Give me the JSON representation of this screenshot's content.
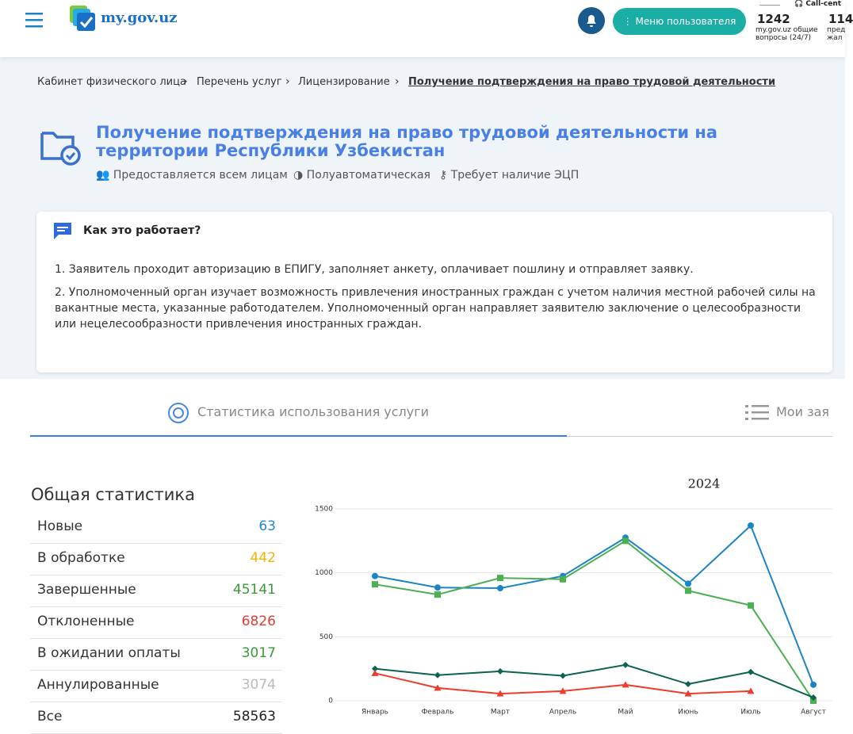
{
  "header": {
    "logo": "my.gov.uz",
    "menu_button": "Меню пользователя",
    "hotline": {
      "number": "1242",
      "caption": "my.gov.uz общие вопросы (24/7)"
    },
    "call_center": {
      "label": "Call-cent",
      "number": "114",
      "caption": "пред жал"
    }
  },
  "breadcrumbs": [
    "Кабинет физического лица",
    "Перечень услуг",
    "Лицензирование",
    "Получение подтверждения на право трудовой деятельности"
  ],
  "service": {
    "title": "Получение подтверждения на право трудовой деятельности на территории Республики Узбекистан",
    "tags": [
      "Предоставляется всем лицам",
      "Полуавтоматическая",
      "Требует наличие ЭЦП"
    ]
  },
  "how_it_works": {
    "title": "Как это работает?",
    "steps": [
      "1. Заявитель проходит авторизацию в ЕПИГУ, заполняет анкету, оплачивает пошлину и отправляет заявку.",
      "2. Уполномоченный орган изучает возможность привлечения иностранных граждан с учетом наличия местной рабочей силы на вакантные места, указанные работодателем. Уполномоченный орган направляет заявителю заключение о целесообразности или нецелесообразности привлечения иностранных граждан."
    ]
  },
  "tabs": [
    "Статистика использования услуги",
    "Мои зая"
  ],
  "statistics": {
    "title": "Общая статистика",
    "rows": [
      {
        "label": "Новые",
        "value": 63
      },
      {
        "label": "В обработке",
        "value": 442
      },
      {
        "label": "Завершенные",
        "value": 45141
      },
      {
        "label": "Отклоненные",
        "value": 6826
      },
      {
        "label": "В ожидании оплаты",
        "value": 3017
      },
      {
        "label": "Аннулированные",
        "value": 3074
      },
      {
        "label": "Все",
        "value": 58563
      }
    ]
  },
  "chart_data": {
    "type": "line",
    "title": "2024",
    "categories": [
      "Январь",
      "Февраль",
      "Март",
      "Апрель",
      "Май",
      "Июнь",
      "Июль",
      "Август"
    ],
    "series": [
      {
        "color": "#1b84c6",
        "marker": "circle",
        "values": [
          975,
          885,
          880,
          975,
          1275,
          915,
          1370,
          125
        ]
      },
      {
        "color": "#4caf50",
        "marker": "square",
        "values": [
          910,
          830,
          960,
          950,
          1250,
          860,
          745,
          0
        ]
      },
      {
        "color": "#0b6350",
        "marker": "diamond",
        "values": [
          250,
          200,
          230,
          195,
          280,
          130,
          225,
          25
        ]
      },
      {
        "color": "#ef3b2c",
        "marker": "triangle",
        "values": [
          215,
          100,
          55,
          75,
          125,
          55,
          75,
          null
        ]
      }
    ],
    "ylim": [
      0,
      1500
    ],
    "yticks": [
      0,
      500,
      1000,
      1500
    ],
    "grid": true
  }
}
